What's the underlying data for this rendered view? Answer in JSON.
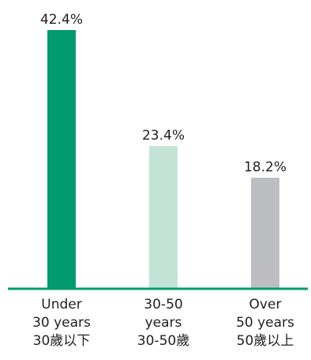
{
  "chart_data": {
    "type": "bar",
    "title": "",
    "xlabel": "",
    "ylabel": "",
    "ylim": [
      0,
      42.4
    ],
    "grid": false,
    "legend": "none",
    "categories": [
      {
        "lines": [
          "Under",
          "30 years",
          "30歲以下"
        ]
      },
      {
        "lines": [
          "30-50",
          "years",
          "30-50歲"
        ]
      },
      {
        "lines": [
          "Over",
          "50 years",
          "50歲以上"
        ]
      }
    ],
    "values": [
      42.4,
      23.4,
      18.2
    ],
    "value_labels": [
      "42.4%",
      "23.4%",
      "18.2%"
    ],
    "colors": [
      "#009a6e",
      "#c2e3d6",
      "#bcbdc0"
    ],
    "axis_color": "#009a6e"
  }
}
